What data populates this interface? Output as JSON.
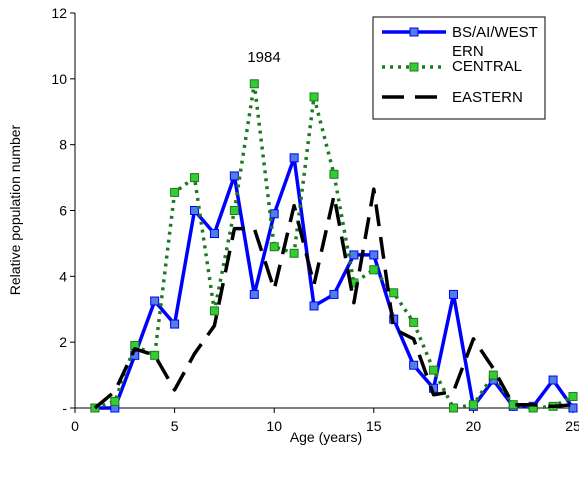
{
  "chart_data": {
    "type": "line",
    "title": "",
    "annotation": "1984",
    "xlabel": "Age (years)",
    "ylabel": "Relative population number",
    "xlim": [
      0,
      25
    ],
    "ylim": [
      0,
      12
    ],
    "xticks": [
      0,
      5,
      10,
      15,
      20,
      25
    ],
    "xtick_labels": [
      "0",
      "5",
      "10",
      "15",
      "20",
      "25"
    ],
    "yticks": [
      0,
      2,
      4,
      6,
      8,
      10,
      12
    ],
    "ytick_labels": [
      "-",
      "2",
      "4",
      "6",
      "8",
      "10",
      "12"
    ],
    "grid": false,
    "legend_position": "top-right",
    "series": [
      {
        "name": "BS/AI/WESTERN",
        "legend_lines": [
          "BS/AI/WEST",
          "ERN"
        ],
        "color": "#0000ff",
        "marker_fill": "#4f7fe0",
        "line_style": "solid",
        "marker": "square",
        "x": [
          1,
          2,
          3,
          4,
          5,
          6,
          7,
          8,
          9,
          10,
          11,
          12,
          13,
          14,
          15,
          16,
          17,
          18,
          19,
          20,
          21,
          22,
          23,
          24,
          25
        ],
        "y": [
          0,
          0,
          1.6,
          3.25,
          2.55,
          6.0,
          5.3,
          7.05,
          3.45,
          5.9,
          7.6,
          3.1,
          3.45,
          4.65,
          4.65,
          2.7,
          1.3,
          0.6,
          3.45,
          0.05,
          0.85,
          0.05,
          0.05,
          0.85,
          0.0
        ]
      },
      {
        "name": "CENTRAL",
        "legend_lines": [
          "CENTRAL"
        ],
        "color": "#1f7a1f",
        "marker_fill": "#33cc33",
        "line_style": "dotted",
        "marker": "square",
        "x": [
          1,
          2,
          3,
          4,
          5,
          6,
          7,
          8,
          9,
          10,
          11,
          12,
          13,
          14,
          15,
          16,
          17,
          18,
          19,
          20,
          21,
          22,
          23,
          24,
          25
        ],
        "y": [
          0,
          0.2,
          1.9,
          1.6,
          6.55,
          7.0,
          2.95,
          6.0,
          9.85,
          4.9,
          4.7,
          9.45,
          7.1,
          3.8,
          4.2,
          3.5,
          2.6,
          1.15,
          0,
          0.1,
          1.0,
          0.1,
          0,
          0.05,
          0.35
        ]
      },
      {
        "name": "EASTERN",
        "legend_lines": [
          "EASTERN"
        ],
        "color": "#000000",
        "line_style": "dashed",
        "marker": "none",
        "x": [
          1,
          2,
          3,
          4,
          5,
          6,
          7,
          8,
          9,
          10,
          11,
          12,
          13,
          14,
          15,
          16,
          17,
          18,
          19,
          20,
          21,
          22,
          23,
          24,
          25
        ],
        "y": [
          0,
          0.5,
          1.8,
          1.6,
          0.55,
          1.65,
          2.5,
          5.45,
          5.45,
          3.6,
          6.15,
          3.75,
          6.45,
          3.2,
          6.65,
          2.4,
          2.1,
          0.4,
          0.5,
          2.1,
          1.2,
          0.1,
          0.1,
          0.05,
          0.1
        ]
      }
    ]
  }
}
